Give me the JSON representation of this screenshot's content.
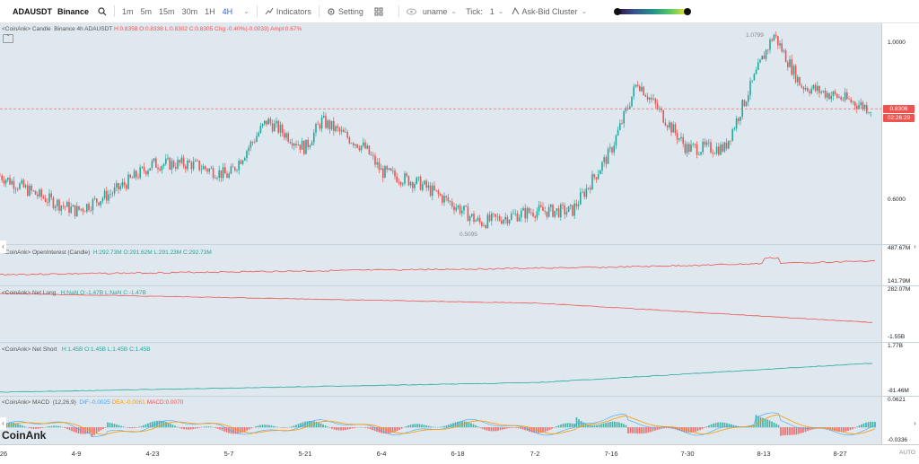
{
  "toolbar": {
    "symbol": "ADAUSDT",
    "exchange": "Binance",
    "intervals": [
      "1m",
      "5m",
      "15m",
      "30m",
      "1H",
      "4H"
    ],
    "active_interval": "4H",
    "indicators_label": "Indicators",
    "setting_label": "Setting",
    "uname_label": "uname",
    "tick_label": "Tick:",
    "tick_value": "1",
    "cluster_label": "Ask-Bid Cluster",
    "gradient_colors": [
      "#2a0a3c",
      "#3b528b",
      "#21918c",
      "#5ec962",
      "#fde725"
    ]
  },
  "candle_pane": {
    "legend_prefix": "<CoinAnk> Candle",
    "legend_series": "Binance 4h ADAUSDT",
    "H": "H:0.8358",
    "O": "O:0.8338",
    "L": "L:0.8302",
    "C": "C:0.8305",
    "chg": "Chg:-0.40%(-0.0033)",
    "ampl": "Ampl:0.67%",
    "high_mark": "1.0799",
    "low_mark": "0.5095",
    "axis_ticks": [
      "1.0000",
      "0.6000"
    ],
    "last_price": "0.8306",
    "countdown": "02:26:29",
    "up_color": "#26a69a",
    "down_color": "#ef5350"
  },
  "oi_pane": {
    "legend_prefix": "<CoinAnk> OpenInterest (Candle)",
    "H": "H:292.73M",
    "O": "O:291.62M",
    "L": "L:291.23M",
    "C": "C:292.73M",
    "axis_top": "487.67M",
    "axis_bottom": "141.79M"
  },
  "net_long_pane": {
    "legend_prefix": "<CoinAnk> Net Long",
    "H": "H:NaN",
    "O": "O:-1.47B",
    "L": "L:NaN",
    "C": "C:-1.47B",
    "axis_top": "282.07M",
    "axis_bottom": "-1.55B"
  },
  "net_short_pane": {
    "legend_prefix": "<CoinAnk> Net Short",
    "H": "H:1.45B",
    "O": "O:1.45B",
    "L": "L:1.45B",
    "C": "C:1.45B",
    "axis_top": "1.77B",
    "axis_bottom": "-81.46M"
  },
  "macd_pane": {
    "legend_prefix": "<CoinAnk> MACD",
    "params": "(12,26,9)",
    "dif": "DIF:-0.0025",
    "dea": "DEA:-0.0061",
    "macd": "MACD:0.0070",
    "axis_top": "0.0621",
    "axis_bottom": "-0.0336"
  },
  "x_axis": {
    "labels": [
      "26",
      "4-9",
      "4-23",
      "5-7",
      "5-21",
      "6-4",
      "6-18",
      "7-2",
      "7-16",
      "7-30",
      "8-13",
      "8-27"
    ],
    "auto_label": "AUTO"
  },
  "watermark": "CoinAnk",
  "chart_data": {
    "type": "candlestick",
    "symbol": "ADAUSDT",
    "timeframe": "4h",
    "x_labels": [
      "4-9",
      "4-23",
      "5-7",
      "5-21",
      "6-4",
      "6-18",
      "7-2",
      "7-16",
      "7-30",
      "8-13",
      "8-27"
    ],
    "price_anchors": [
      {
        "x": "3-26",
        "price": 0.66
      },
      {
        "x": "4-2",
        "price": 0.61
      },
      {
        "x": "4-9",
        "price": 0.57
      },
      {
        "x": "4-16",
        "price": 0.62
      },
      {
        "x": "4-23",
        "price": 0.69
      },
      {
        "x": "4-30",
        "price": 0.69
      },
      {
        "x": "5-7",
        "price": 0.66
      },
      {
        "x": "5-11",
        "price": 0.74
      },
      {
        "x": "5-14",
        "price": 0.8
      },
      {
        "x": "5-21",
        "price": 0.73
      },
      {
        "x": "5-24",
        "price": 0.8
      },
      {
        "x": "6-1",
        "price": 0.73
      },
      {
        "x": "6-4",
        "price": 0.67
      },
      {
        "x": "6-11",
        "price": 0.64
      },
      {
        "x": "6-18",
        "price": 0.58
      },
      {
        "x": "6-22",
        "price": 0.54
      },
      {
        "x": "7-2",
        "price": 0.57
      },
      {
        "x": "7-9",
        "price": 0.57
      },
      {
        "x": "7-16",
        "price": 0.72
      },
      {
        "x": "7-21",
        "price": 0.9
      },
      {
        "x": "7-30",
        "price": 0.73
      },
      {
        "x": "8-6",
        "price": 0.73
      },
      {
        "x": "8-13",
        "price": 0.96
      },
      {
        "x": "8-15",
        "price": 1.02
      },
      {
        "x": "8-20",
        "price": 0.89
      },
      {
        "x": "8-27",
        "price": 0.86
      },
      {
        "x": "9-2",
        "price": 0.83
      }
    ],
    "last": 0.8305,
    "high_label": 1.0799,
    "low_label": 0.5095
  }
}
